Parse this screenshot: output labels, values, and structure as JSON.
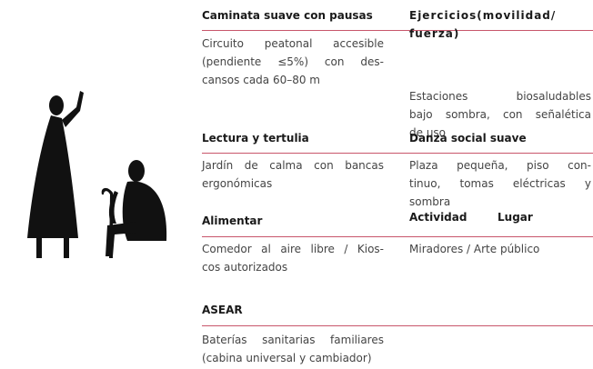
{
  "blocks": [
    {
      "title": [
        "Caminata suave con pausas"
      ],
      "description": [
        "Circuito peatonal accesible",
        "(pendiente ≤5%) con des-",
        "cansos cada 60–80 m"
      ]
    },
    {
      "title": [
        "Ejercicios(movilidad/",
        "fuerza)"
      ],
      "description": [
        "Estaciones biosaludables",
        "bajo sombra, con señalética",
        "de uso"
      ]
    },
    {
      "title": [
        "Lectura y tertulia"
      ],
      "description": [
        "Jardín de calma con bancas",
        "ergonómicas"
      ]
    },
    {
      "title": [
        "Danza social suave"
      ],
      "description": [
        "Plaza pequeña, piso con-",
        "tinuo, tomas eléctricas y",
        "sombra"
      ]
    },
    {
      "title": [
        "Alimentar"
      ],
      "description": [
        "Comedor al aire libre / Kios-",
        "cos autorizados"
      ]
    },
    {
      "title": [
        "Actividad",
        "Lugar"
      ],
      "description": [
        "Miradores / Arte público"
      ]
    },
    {
      "title": [
        "ASEAR"
      ],
      "description": [
        "Baterías sanitarias familiares",
        "(cabina universal y cambiador)"
      ]
    }
  ]
}
